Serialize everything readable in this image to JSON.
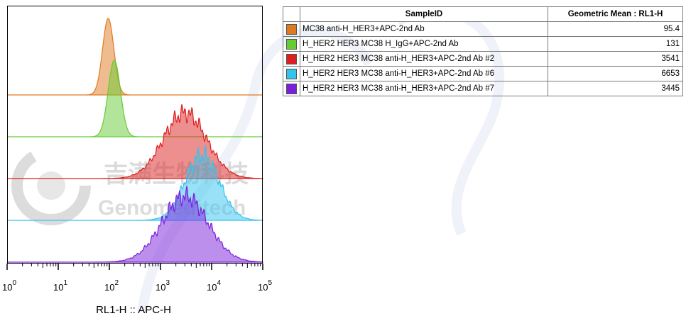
{
  "watermark": {
    "cn": "吉满生物科技",
    "en": "Genomeditech"
  },
  "table": {
    "headers": [
      "SampleID",
      "Geometric Mean : RL1-H"
    ]
  },
  "chart_data": {
    "type": "area",
    "xlabel": "RL1-H :: APC-H",
    "x_scale": "log",
    "xlim": [
      1,
      100000
    ],
    "x_ticks": [
      {
        "base": "10",
        "exp": "0",
        "value": 1
      },
      {
        "base": "10",
        "exp": "1",
        "value": 10
      },
      {
        "base": "10",
        "exp": "2",
        "value": 100
      },
      {
        "base": "10",
        "exp": "3",
        "value": 1000
      },
      {
        "base": "10",
        "exp": "4",
        "value": 10000
      },
      {
        "base": "10",
        "exp": "5",
        "value": 100000
      }
    ],
    "layout": "offset-histogram",
    "series": [
      {
        "name": "MC38 anti-H_HER3+APC-2nd Ab",
        "color": "#e07a1f",
        "geometric_mean": "95.4",
        "peak_x": 95,
        "spread_decades": 0.11
      },
      {
        "name": "H_HER2 HER3 MC38 H_IgG+APC-2nd Ab",
        "color": "#66cc33",
        "geometric_mean": "131",
        "peak_x": 125,
        "spread_decades": 0.12
      },
      {
        "name": "H_HER2 HER3 MC38 anti-H_HER3+APC-2nd Ab #2",
        "color": "#dd1f1f",
        "geometric_mean": "3541",
        "peak_x": 3000,
        "spread_decades": 0.42
      },
      {
        "name": "H_HER2 HER3 MC38 anti-H_HER3+APC-2nd Ab #6",
        "color": "#33c4ee",
        "geometric_mean": "6653",
        "peak_x": 6500,
        "spread_decades": 0.33
      },
      {
        "name": "H_HER2 HER3 MC38 anti-H_HER3+APC-2nd Ab #7",
        "color": "#7a1fdc",
        "geometric_mean": "3445",
        "peak_x": 3000,
        "spread_decades": 0.45
      }
    ]
  }
}
